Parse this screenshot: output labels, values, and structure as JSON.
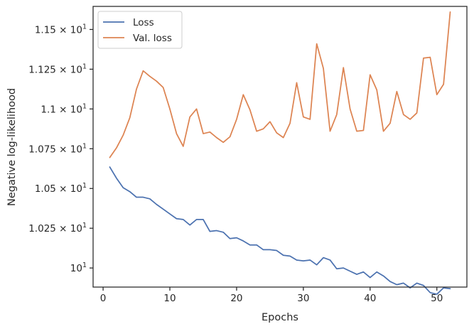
{
  "chart_data": {
    "type": "line",
    "title": "",
    "xlabel": "Epochs",
    "ylabel": "Negative log-likelihood",
    "xlim": [
      -1.5,
      54.5
    ],
    "ylim": [
      9.88,
      11.645
    ],
    "xticks": [
      0,
      10,
      20,
      30,
      40,
      50
    ],
    "xtick_labels": [
      "0",
      "10",
      "20",
      "30",
      "40",
      "50"
    ],
    "yticks": [
      10.0,
      10.25,
      10.5,
      10.75,
      11.0,
      11.25,
      11.5
    ],
    "ytick_labels": [
      {
        "mantissa": "",
        "base": "10",
        "exp": "1"
      },
      {
        "mantissa": "1.025",
        "base": "10",
        "exp": "1"
      },
      {
        "mantissa": "1.05",
        "base": "10",
        "exp": "1"
      },
      {
        "mantissa": "1.075",
        "base": "10",
        "exp": "1"
      },
      {
        "mantissa": "1.1",
        "base": "10",
        "exp": "1"
      },
      {
        "mantissa": "1.125",
        "base": "10",
        "exp": "1"
      },
      {
        "mantissa": "1.15",
        "base": "10",
        "exp": "1"
      }
    ],
    "grid": false,
    "legend_position": "top-left",
    "x": [
      1,
      2,
      3,
      4,
      5,
      6,
      7,
      8,
      9,
      10,
      11,
      12,
      13,
      14,
      15,
      16,
      17,
      18,
      19,
      20,
      21,
      22,
      23,
      24,
      25,
      26,
      27,
      28,
      29,
      30,
      31,
      32,
      33,
      34,
      35,
      36,
      37,
      38,
      39,
      40,
      41,
      42,
      43,
      44,
      45,
      46,
      47,
      48,
      49,
      50,
      51,
      52
    ],
    "series": [
      {
        "name": "Loss",
        "color": "#4c72b0",
        "values": [
          10.635,
          10.565,
          10.505,
          10.48,
          10.445,
          10.445,
          10.435,
          10.4,
          10.37,
          10.34,
          10.31,
          10.305,
          10.27,
          10.305,
          10.305,
          10.23,
          10.235,
          10.225,
          10.185,
          10.19,
          10.17,
          10.145,
          10.145,
          10.115,
          10.115,
          10.11,
          10.08,
          10.075,
          10.05,
          10.045,
          10.05,
          10.02,
          10.065,
          10.05,
          9.995,
          10.0,
          9.98,
          9.96,
          9.975,
          9.94,
          9.975,
          9.95,
          9.915,
          9.895,
          9.905,
          9.875,
          9.905,
          9.89,
          9.845,
          9.835,
          9.875,
          9.87
        ]
      },
      {
        "name": "Val. loss",
        "color": "#dd8452",
        "values": [
          10.695,
          10.755,
          10.835,
          10.945,
          11.125,
          11.24,
          11.205,
          11.175,
          11.135,
          11.0,
          10.845,
          10.765,
          10.95,
          11.0,
          10.845,
          10.855,
          10.82,
          10.79,
          10.825,
          10.935,
          11.09,
          10.995,
          10.86,
          10.875,
          10.92,
          10.85,
          10.82,
          10.91,
          11.165,
          10.95,
          10.935,
          11.41,
          11.255,
          10.86,
          10.965,
          11.26,
          11.0,
          10.86,
          10.865,
          11.215,
          11.12,
          10.86,
          10.91,
          11.11,
          10.965,
          10.935,
          10.975,
          11.32,
          11.325,
          11.09,
          11.155,
          11.61
        ]
      }
    ]
  }
}
